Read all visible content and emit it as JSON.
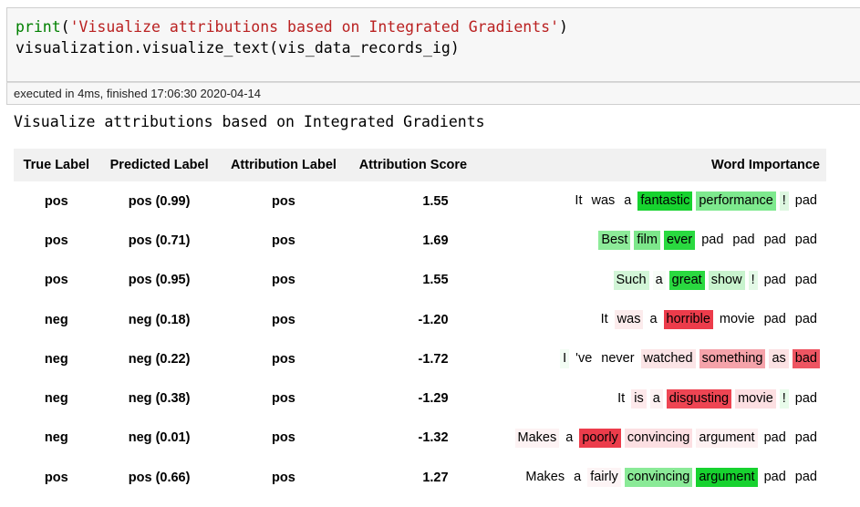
{
  "cell": {
    "code_kw": "print",
    "code_paren_open": "(",
    "code_str": "'Visualize attributions based on Integrated Gradients'",
    "code_paren_close": ")",
    "code_line2": "visualization.visualize_text(vis_data_records_ig)",
    "exec_status": "executed in 4ms, finished 17:06:30 2020-04-14"
  },
  "output": {
    "heading": "Visualize attributions based on Integrated Gradients",
    "columns": [
      "True Label",
      "Predicted Label",
      "Attribution Label",
      "Attribution Score",
      "Word Importance"
    ],
    "rows": [
      {
        "true": "pos",
        "pred": "pos (0.99)",
        "attr": "pos",
        "score": "1.55",
        "words": [
          [
            "It",
            "#ffffff"
          ],
          [
            "was",
            "#ffffff"
          ],
          [
            "a",
            "#ffffff"
          ],
          [
            "fantastic",
            "#17d22f"
          ],
          [
            "performance",
            "#7ee98e"
          ],
          [
            "!",
            "#ddf7e0"
          ],
          [
            "pad",
            "#ffffff"
          ]
        ]
      },
      {
        "true": "pos",
        "pred": "pos (0.71)",
        "attr": "pos",
        "score": "1.69",
        "words": [
          [
            "Best",
            "#8deb99"
          ],
          [
            "film",
            "#7de78b"
          ],
          [
            "ever",
            "#2ad940"
          ],
          [
            "pad",
            "#ffffff"
          ],
          [
            "pad",
            "#ffffff"
          ],
          [
            "pad",
            "#ffffff"
          ],
          [
            "pad",
            "#ffffff"
          ]
        ]
      },
      {
        "true": "pos",
        "pred": "pos (0.95)",
        "attr": "pos",
        "score": "1.55",
        "words": [
          [
            "Such",
            "#d2f5d7"
          ],
          [
            "a",
            "#f7fdf7"
          ],
          [
            "great",
            "#2ad940"
          ],
          [
            "show",
            "#c8f3ce"
          ],
          [
            "!",
            "#e3f9e6"
          ],
          [
            "pad",
            "#ffffff"
          ],
          [
            "pad",
            "#ffffff"
          ]
        ]
      },
      {
        "true": "neg",
        "pred": "neg (0.18)",
        "attr": "pos",
        "score": "-1.20",
        "words": [
          [
            "It",
            "#ffffff"
          ],
          [
            "was",
            "#fcebec"
          ],
          [
            "a",
            "#ffffff"
          ],
          [
            "horrible",
            "#ec3c4b"
          ],
          [
            "movie",
            "#ffffff"
          ],
          [
            "pad",
            "#ffffff"
          ],
          [
            "pad",
            "#ffffff"
          ]
        ]
      },
      {
        "true": "neg",
        "pred": "neg (0.22)",
        "attr": "pos",
        "score": "-1.72",
        "words": [
          [
            "I",
            "#f2fcf3"
          ],
          [
            "'ve",
            "#ffffff"
          ],
          [
            "never",
            "#ffffff"
          ],
          [
            "watched",
            "#fbe4e6"
          ],
          [
            "something",
            "#f5a3aa"
          ],
          [
            "as",
            "#fbe1e3"
          ],
          [
            "bad",
            "#ee5562"
          ]
        ]
      },
      {
        "true": "neg",
        "pred": "neg (0.38)",
        "attr": "pos",
        "score": "-1.29",
        "words": [
          [
            "It",
            "#ffffff"
          ],
          [
            "is",
            "#fde9eb"
          ],
          [
            "a",
            "#fdf0f1"
          ],
          [
            "disgusting",
            "#ee4553"
          ],
          [
            "movie",
            "#fcdfe2"
          ],
          [
            "!",
            "#e8fbea"
          ],
          [
            "pad",
            "#ffffff"
          ]
        ]
      },
      {
        "true": "neg",
        "pred": "neg (0.01)",
        "attr": "pos",
        "score": "-1.32",
        "words": [
          [
            "Makes",
            "#fdf2f3"
          ],
          [
            "a",
            "#ffffff"
          ],
          [
            "poorly",
            "#ec3c4b"
          ],
          [
            "convincing",
            "#fcdfe2"
          ],
          [
            "argument",
            "#fdf0f1"
          ],
          [
            "pad",
            "#ffffff"
          ],
          [
            "pad",
            "#ffffff"
          ]
        ]
      },
      {
        "true": "pos",
        "pred": "pos (0.66)",
        "attr": "pos",
        "score": "1.27",
        "words": [
          [
            "Makes",
            "#ffffff"
          ],
          [
            "a",
            "#ffffff"
          ],
          [
            "fairly",
            "#fdf4f5"
          ],
          [
            "convincing",
            "#8aea97"
          ],
          [
            "argument",
            "#17d22f"
          ],
          [
            "pad",
            "#ffffff"
          ],
          [
            "pad",
            "#ffffff"
          ]
        ]
      }
    ]
  }
}
